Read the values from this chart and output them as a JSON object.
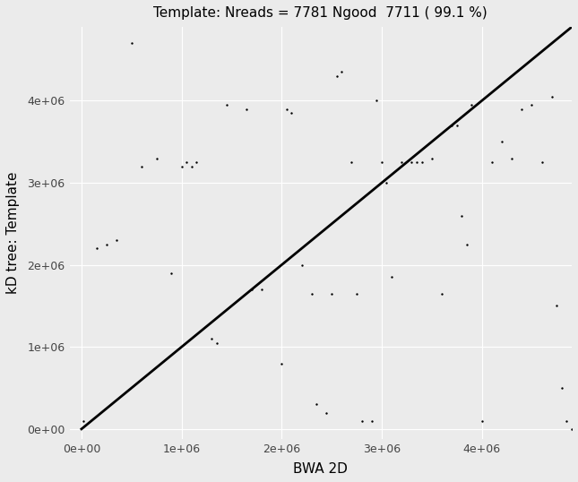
{
  "title": "Template: Nreads = 7781 Ngood  7711 ( 99.1 %)",
  "xlabel": "BWA 2D",
  "ylabel": "kD tree: Template",
  "xlim": [
    -120000,
    4900000
  ],
  "ylim": [
    -120000,
    4900000
  ],
  "xticks": [
    0,
    1000000,
    2000000,
    3000000,
    4000000
  ],
  "yticks": [
    0,
    1000000,
    2000000,
    3000000,
    4000000
  ],
  "background_color": "#EBEBEB",
  "grid_color": "#FFFFFF",
  "line_color": "black",
  "point_color": "black",
  "point_size": 3,
  "title_fontsize": 11,
  "label_fontsize": 11,
  "tick_fontsize": 9,
  "scatter_x": [
    20000,
    150000,
    250000,
    350000,
    500000,
    600000,
    750000,
    900000,
    1000000,
    1050000,
    1100000,
    1150000,
    1300000,
    1350000,
    1450000,
    1650000,
    1700000,
    1800000,
    2000000,
    2050000,
    2100000,
    2200000,
    2300000,
    2350000,
    2450000,
    2500000,
    2550000,
    2600000,
    2700000,
    2750000,
    2800000,
    2900000,
    2950000,
    3000000,
    3050000,
    3100000,
    3200000,
    3300000,
    3350000,
    3400000,
    3500000,
    3600000,
    3700000,
    3750000,
    3800000,
    3850000,
    3900000,
    4000000,
    4100000,
    4200000,
    4300000,
    4400000,
    4500000,
    4600000,
    4700000,
    4750000,
    4800000,
    4850000,
    4900000
  ],
  "scatter_y": [
    100000,
    2200000,
    2250000,
    2300000,
    4700000,
    3200000,
    3300000,
    1900000,
    3200000,
    3250000,
    3200000,
    3250000,
    1100000,
    1050000,
    3950000,
    3900000,
    1700000,
    1700000,
    800000,
    3900000,
    3850000,
    2000000,
    1650000,
    300000,
    200000,
    1650000,
    4300000,
    4350000,
    3250000,
    1650000,
    100000,
    100000,
    4000000,
    3250000,
    3000000,
    1850000,
    3250000,
    3250000,
    3250000,
    3250000,
    3300000,
    1650000,
    3700000,
    3700000,
    2600000,
    2250000,
    3950000,
    100000,
    3250000,
    3500000,
    3300000,
    3900000,
    3950000,
    3250000,
    4050000,
    1500000,
    500000,
    100000,
    0
  ]
}
